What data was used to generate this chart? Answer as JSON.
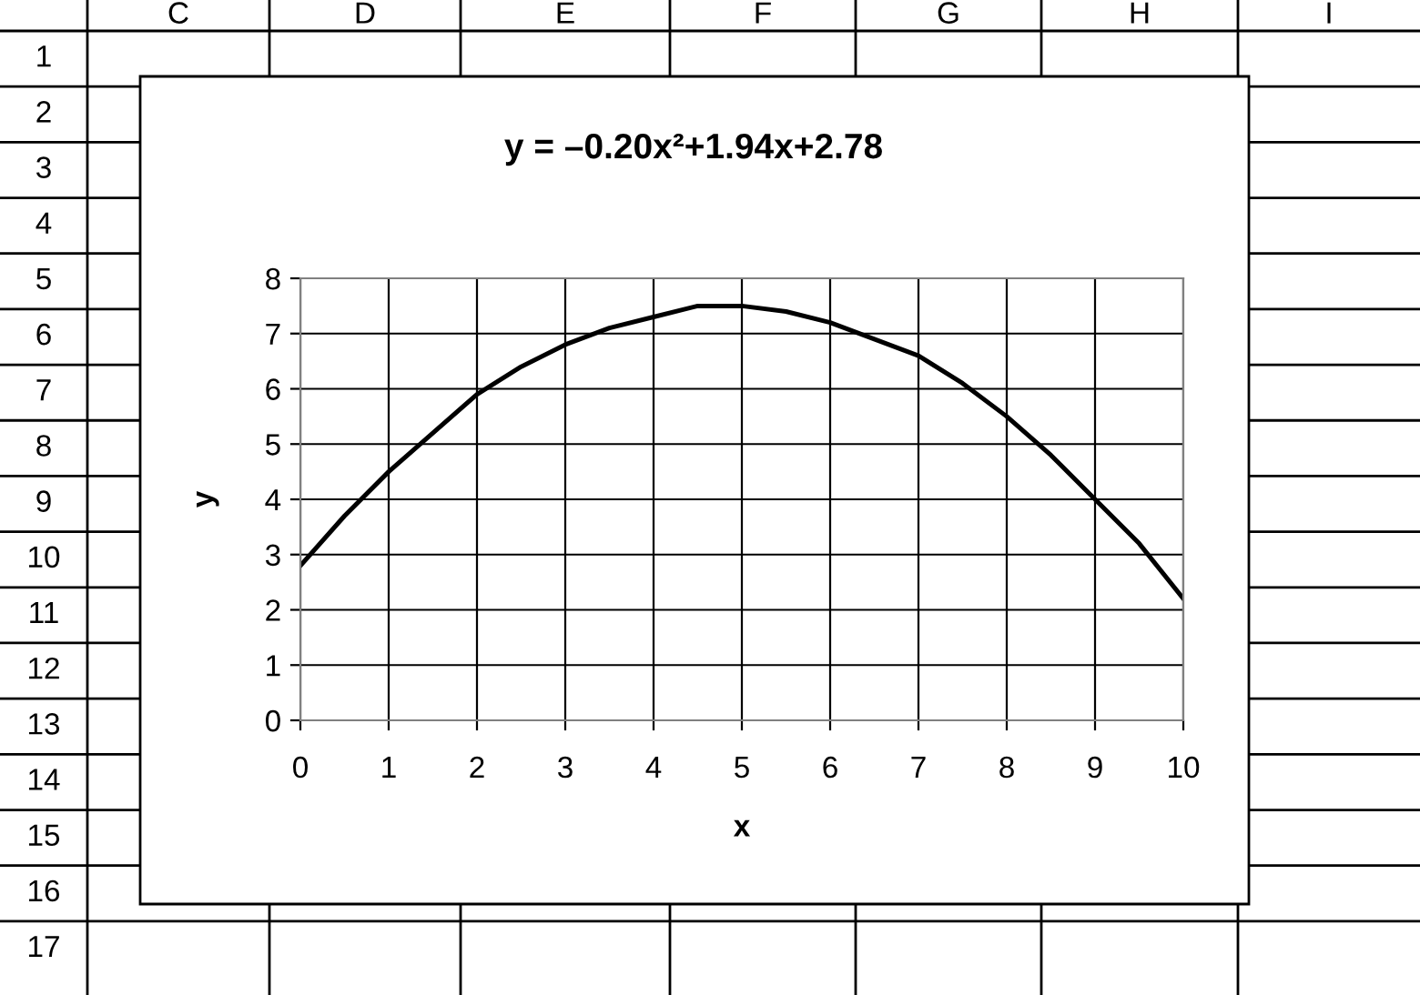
{
  "chart_data": {
    "type": "line",
    "title": "y = –0.20x²+1.94x+2.78",
    "xlabel": "x",
    "ylabel": "y",
    "x": [
      0,
      0.5,
      1,
      1.5,
      2,
      2.5,
      3,
      3.5,
      4,
      4.5,
      5,
      5.5,
      6,
      6.5,
      7,
      7.5,
      8,
      8.5,
      9,
      9.5,
      10
    ],
    "series": [
      {
        "color": "#000000",
        "values": [
          2.8,
          3.7,
          4.5,
          5.2,
          5.9,
          6.4,
          6.8,
          7.1,
          7.3,
          7.5,
          7.5,
          7.4,
          7.2,
          6.9,
          6.6,
          6.1,
          5.5,
          4.8,
          4.0,
          3.2,
          2.2
        ]
      }
    ],
    "xlim": [
      0,
      10
    ],
    "xticks": [
      0,
      1,
      2,
      3,
      4,
      5,
      6,
      7,
      8,
      9,
      10
    ],
    "ylim": [
      0,
      8
    ],
    "yticks": [
      0,
      1,
      2,
      3,
      4,
      5,
      6,
      7,
      8
    ],
    "grid": true,
    "marker": "none",
    "line_style": "solid",
    "legend": false,
    "annotations": [
      "C",
      "D",
      "E",
      "F",
      "G",
      "H",
      "I",
      "1",
      "2",
      "3",
      "4",
      "5",
      "6",
      "7",
      "8",
      "9",
      "10",
      "11",
      "12",
      "13",
      "14",
      "15",
      "16",
      "17"
    ]
  }
}
